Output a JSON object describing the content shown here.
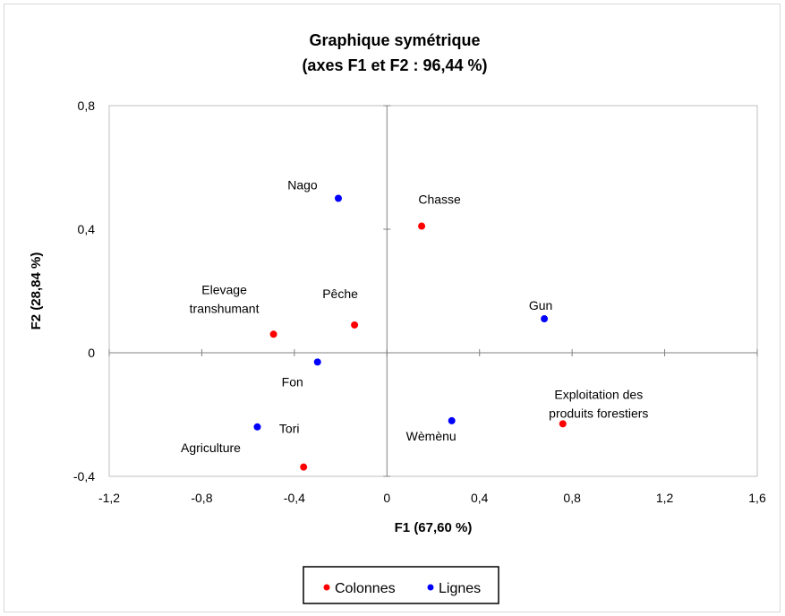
{
  "chart_data": {
    "type": "scatter",
    "title": "Graphique symétrique",
    "subtitle": "(axes F1 et F2 : 96,44 %)",
    "xlabel": "F1 (67,60 %)",
    "ylabel": "F2 (28,84 %)",
    "xlim": [
      -1.2,
      1.6
    ],
    "ylim": [
      -0.4,
      0.8
    ],
    "x_ticks": [
      -1.2,
      -0.8,
      -0.4,
      0,
      0.4,
      0.8,
      1.2,
      1.6
    ],
    "y_ticks": [
      -0.4,
      0,
      0.4,
      0.8
    ],
    "x_tick_labels": [
      "-1,2",
      "-0,8",
      "-0,4",
      "0",
      "0,4",
      "0,8",
      "1,2",
      "1,6"
    ],
    "y_tick_labels": [
      "-0,4",
      "0",
      "0,4",
      "0,8"
    ],
    "grid": false,
    "legend_position": "bottom",
    "series": [
      {
        "name": "Colonnes",
        "color": "#ff0000",
        "points": [
          {
            "label": "Chasse",
            "x": 0.15,
            "y": 0.41
          },
          {
            "label": "Pêche",
            "x": -0.14,
            "y": 0.09
          },
          {
            "label": "Elevage transhumant",
            "x": -0.49,
            "y": 0.06
          },
          {
            "label": "Tori",
            "x": -0.36,
            "y": -0.37
          },
          {
            "label": "Exploitation des produits forestiers",
            "x": 0.76,
            "y": -0.23
          }
        ]
      },
      {
        "name": "Lignes",
        "color": "#0000ff",
        "points": [
          {
            "label": "Nago",
            "x": -0.21,
            "y": 0.5
          },
          {
            "label": "Gun",
            "x": 0.68,
            "y": 0.11
          },
          {
            "label": "Fon",
            "x": -0.3,
            "y": -0.03
          },
          {
            "label": "Agriculture",
            "x": -0.56,
            "y": -0.24
          },
          {
            "label": "Wèmènu",
            "x": 0.28,
            "y": -0.22
          }
        ]
      }
    ]
  }
}
